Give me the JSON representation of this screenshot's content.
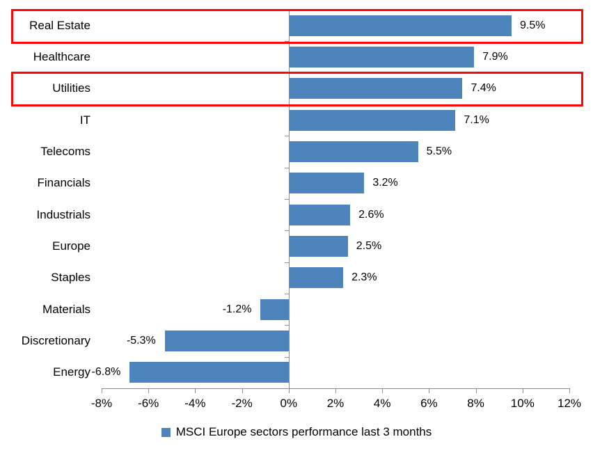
{
  "chart_data": {
    "type": "bar",
    "orientation": "horizontal",
    "title": "",
    "categories": [
      "Real Estate",
      "Healthcare",
      "Utilities",
      "IT",
      "Telecoms",
      "Financials",
      "Industrials",
      "Europe",
      "Staples",
      "Materials",
      "Discretionary",
      "Energy"
    ],
    "values": [
      9.5,
      7.9,
      7.4,
      7.1,
      5.5,
      3.2,
      2.6,
      2.5,
      2.3,
      -1.2,
      -5.3,
      -6.8
    ],
    "value_labels": [
      "9.5%",
      "7.9%",
      "7.4%",
      "7.1%",
      "5.5%",
      "3.2%",
      "2.6%",
      "2.5%",
      "2.3%",
      "-1.2%",
      "-5.3%",
      "-6.8%"
    ],
    "series_name": "MSCI Europe sectors performance last 3 months",
    "xlim": [
      -8,
      12
    ],
    "x_tick_values": [
      -8,
      -6,
      -4,
      -2,
      0,
      2,
      4,
      6,
      8,
      10,
      12
    ],
    "x_tick_labels": [
      "-8%",
      "-6%",
      "-4%",
      "-2%",
      "0%",
      "2%",
      "4%",
      "6%",
      "8%",
      "10%",
      "12%"
    ],
    "grid": "off",
    "legend_position": "bottom",
    "bar_color": "#4e84bc",
    "axis_color": "#8b8b8b",
    "highlight_color": "#fe0606",
    "highlighted_categories": [
      "Real Estate",
      "Utilities"
    ]
  }
}
